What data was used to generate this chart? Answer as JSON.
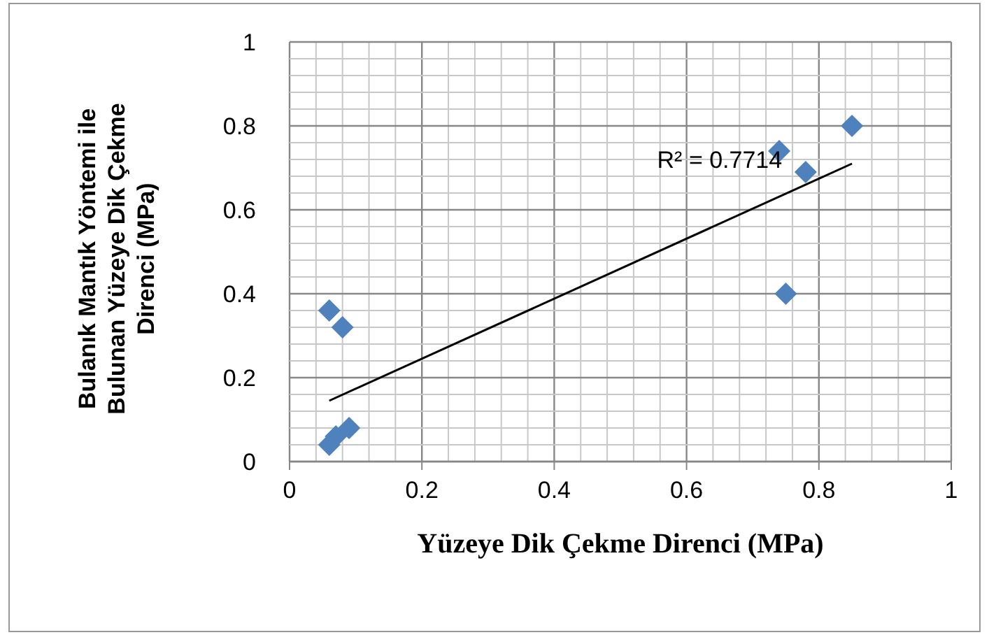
{
  "chart_data": {
    "type": "scatter",
    "xlabel": "Yüzeye Dik Çekme Direnci (MPa)",
    "ylabel": "Bulanık Mantık Yöntemi ile Bulunan Yüzeye Dik Çekme Direnci (MPa)",
    "x": [
      0.06,
      0.08,
      0.06,
      0.07,
      0.09,
      0.74,
      0.78,
      0.85,
      0.75
    ],
    "series": [
      {
        "color": "#4f81bd",
        "values": [
          0.36,
          0.32,
          0.04,
          0.06,
          0.08,
          0.74,
          0.69,
          0.8,
          0.4
        ],
        "marker": "diamond"
      },
      {
        "type": "line",
        "color": "#000000",
        "x": [
          0.06,
          0.85
        ],
        "values": [
          0.145,
          0.71
        ]
      }
    ],
    "xlim": [
      0,
      1
    ],
    "ylim": [
      0,
      1
    ],
    "xticks": [
      0,
      {
        "value": 0.04,
        "label": null
      },
      {
        "value": 0.08,
        "label": null
      },
      {
        "value": 0.12,
        "label": null
      },
      {
        "value": 0.16,
        "label": null
      },
      0.2,
      {
        "value": 0.24,
        "label": null
      },
      {
        "value": 0.28,
        "label": null
      },
      {
        "value": 0.32,
        "label": null
      },
      {
        "value": 0.36,
        "label": null
      },
      0.4,
      {
        "value": 0.44,
        "label": null
      },
      {
        "value": 0.48,
        "label": null
      },
      {
        "value": 0.52,
        "label": null
      },
      {
        "value": 0.56,
        "label": null
      },
      0.6,
      {
        "value": 0.64,
        "label": null
      },
      {
        "value": 0.68,
        "label": null
      },
      {
        "value": 0.72,
        "label": null
      },
      {
        "value": 0.76,
        "label": null
      },
      0.8,
      {
        "value": 0.84,
        "label": null
      },
      {
        "value": 0.88,
        "label": null
      },
      {
        "value": 0.92,
        "label": null
      },
      {
        "value": 0.96,
        "label": null
      },
      1
    ],
    "yticks": [
      0,
      {
        "value": 0.04,
        "label": null
      },
      {
        "value": 0.08,
        "label": null
      },
      {
        "value": 0.12,
        "label": null
      },
      {
        "value": 0.16,
        "label": null
      },
      0.2,
      {
        "value": 0.24,
        "label": null
      },
      {
        "value": 0.28,
        "label": null
      },
      {
        "value": 0.32,
        "label": null
      },
      {
        "value": 0.36,
        "label": null
      },
      0.4,
      {
        "value": 0.44,
        "label": null
      },
      {
        "value": 0.48,
        "label": null
      },
      {
        "value": 0.52,
        "label": null
      },
      {
        "value": 0.56,
        "label": null
      },
      0.6,
      {
        "value": 0.64,
        "label": null
      },
      {
        "value": 0.68,
        "label": null
      },
      {
        "value": 0.72,
        "label": null
      },
      {
        "value": 0.76,
        "label": null
      },
      0.8,
      {
        "value": 0.84,
        "label": null
      },
      {
        "value": 0.88,
        "label": null
      },
      {
        "value": 0.92,
        "label": null
      },
      {
        "value": 0.96,
        "label": null
      },
      1
    ],
    "grid": true,
    "annotations": [
      "R² = 0.7714"
    ]
  }
}
